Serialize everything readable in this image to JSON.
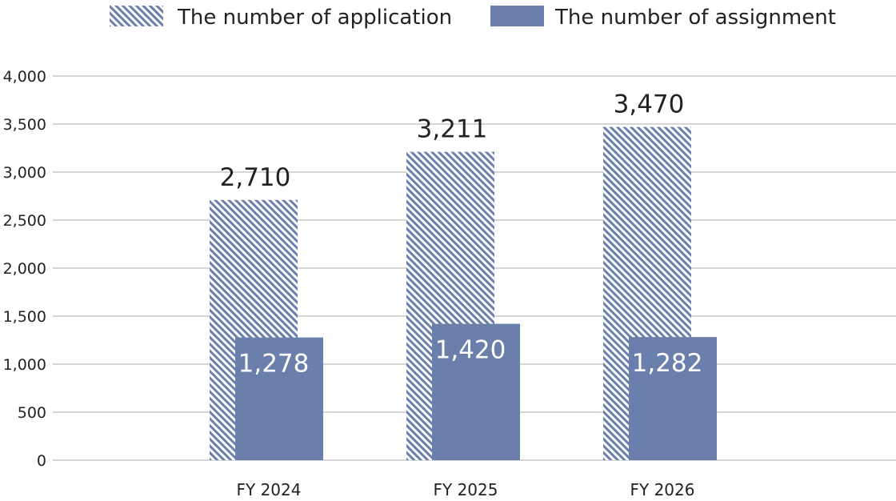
{
  "chart_data": {
    "type": "bar",
    "categories": [
      "FY 2024",
      "FY 2025",
      "FY 2026"
    ],
    "series": [
      {
        "name": "The number of application",
        "values": [
          2710,
          3211,
          3470
        ],
        "labels": [
          "2,710",
          "3,211",
          "3,470"
        ],
        "color": "#6b7fad",
        "pattern": "hatched"
      },
      {
        "name": "The number of assignment",
        "values": [
          1278,
          1420,
          1282
        ],
        "labels": [
          "1,278",
          "1,420",
          "1,282"
        ],
        "color": "#6b7fad",
        "pattern": "solid"
      }
    ],
    "ylim": [
      0,
      4000
    ],
    "yticks": [
      0,
      500,
      1000,
      1500,
      2000,
      2500,
      3000,
      3500,
      4000
    ],
    "ytick_labels": [
      "0",
      "500",
      "1,000",
      "1,500",
      "2,000",
      "2,500",
      "3,000",
      "3,500",
      "4,000"
    ],
    "grid": true,
    "legend": "top-center",
    "gridline_color": "#c8c8c8"
  }
}
